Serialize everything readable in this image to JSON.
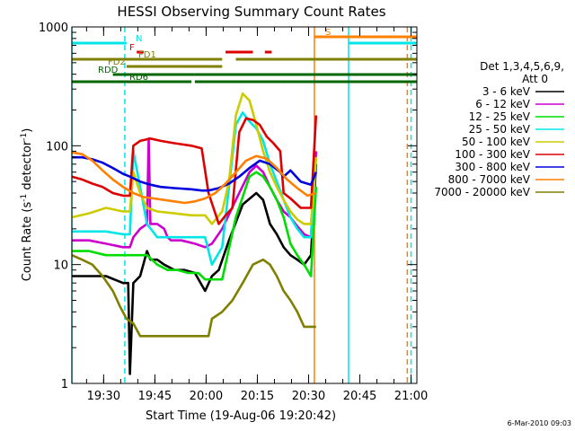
{
  "chart_data": {
    "type": "line",
    "title": "HESSI Observing Summary Count Rates",
    "xlabel": "Start Time (19-Aug-06 19:20:42)",
    "ylabel_main": "Count Rate (s",
    "ylabel_sup1": "-1",
    "ylabel_mid": " detector",
    "ylabel_sup2": "-1",
    "ylabel_end": ")",
    "yscale": "log",
    "ylim": [
      1,
      1000
    ],
    "xlim_minutes": [
      0,
      101
    ],
    "x_ticks": [
      {
        "label": "19:30",
        "min": 9.3
      },
      {
        "label": "19:45",
        "min": 24.3
      },
      {
        "label": "20:00",
        "min": 39.3
      },
      {
        "label": "20:15",
        "min": 54.3
      },
      {
        "label": "20:30",
        "min": 69.3
      },
      {
        "label": "20:45",
        "min": 84.3
      },
      {
        "label": "21:00",
        "min": 99.3
      }
    ],
    "y_ticks": [
      {
        "label": "1",
        "v": 1
      },
      {
        "label": "10",
        "v": 10
      },
      {
        "label": "100",
        "v": 100
      },
      {
        "label": "1000",
        "v": 1000
      }
    ],
    "legend_header": [
      "Det 1,3,4,5,6,9,",
      "Att 0"
    ],
    "series": [
      {
        "name": "3 - 6 keV",
        "color": "#000000",
        "x": [
          0,
          5,
          10,
          15,
          16.5,
          17,
          18,
          20,
          22,
          23,
          25,
          27,
          30,
          33,
          36,
          39,
          41,
          43,
          46,
          50,
          54,
          56,
          58,
          60,
          62,
          64,
          66,
          68,
          70,
          71.5
        ],
        "y": [
          8,
          8,
          8,
          7,
          7,
          1.2,
          7,
          8,
          13,
          11,
          11,
          10,
          9,
          9,
          8.5,
          6,
          8,
          9,
          16,
          32,
          40,
          35,
          22,
          18,
          14,
          12,
          11,
          10,
          12,
          70
        ]
      },
      {
        "name": "6 - 12 keV",
        "color": "#cc00cc",
        "x": [
          0,
          5,
          10,
          15,
          17,
          18,
          20,
          22,
          22.5,
          23,
          25,
          27,
          28,
          29,
          32,
          36,
          39,
          41,
          44,
          48,
          52,
          54,
          56,
          58,
          60,
          62,
          64,
          66,
          68,
          70,
          71.5
        ],
        "y": [
          16,
          16,
          15,
          14,
          14,
          17,
          20,
          22,
          115,
          22,
          22,
          20,
          17,
          16,
          16,
          15,
          14,
          15,
          20,
          35,
          60,
          68,
          60,
          45,
          35,
          28,
          25,
          21,
          18,
          17,
          90
        ]
      },
      {
        "name": "12 - 25 keV",
        "color": "#00dd00",
        "x": [
          0,
          5,
          10,
          15,
          17,
          18,
          20,
          22,
          25,
          28,
          31,
          34,
          37,
          39,
          41,
          44,
          48,
          52,
          54,
          56,
          58,
          60,
          62,
          64,
          66,
          68,
          70,
          71.5
        ],
        "y": [
          13,
          13,
          12,
          12,
          12,
          12,
          12,
          12,
          10,
          9,
          9,
          8.5,
          8.5,
          7.5,
          7.5,
          7.5,
          25,
          55,
          60,
          55,
          45,
          35,
          25,
          15,
          12,
          10,
          8,
          45
        ]
      },
      {
        "name": "25 - 50 keV",
        "color": "#00e5e5",
        "x": [
          0,
          5,
          10,
          15,
          17,
          18,
          20,
          22,
          25,
          30,
          35,
          39,
          41,
          44,
          46,
          48,
          50,
          52,
          54,
          56,
          58,
          60,
          62,
          64,
          66,
          68,
          70,
          71.5
        ],
        "y": [
          19,
          19,
          19,
          18,
          18,
          90,
          45,
          22,
          17,
          17,
          17,
          17,
          10,
          14,
          45,
          150,
          190,
          160,
          140,
          110,
          70,
          50,
          35,
          25,
          20,
          17,
          17,
          80
        ]
      },
      {
        "name": "50 - 100 keV",
        "color": "#cccc00",
        "x": [
          0,
          5,
          10,
          15,
          17,
          18,
          20,
          22,
          25,
          30,
          35,
          39,
          41,
          44,
          46,
          48,
          50,
          52,
          54,
          56,
          58,
          60,
          62,
          64,
          66,
          68,
          70,
          71.5
        ],
        "y": [
          25,
          27,
          30,
          28,
          28,
          60,
          40,
          30,
          28,
          27,
          26,
          26,
          22,
          28,
          50,
          180,
          275,
          240,
          150,
          90,
          60,
          45,
          35,
          28,
          24,
          22,
          22,
          80
        ]
      },
      {
        "name": "100 - 300 keV",
        "color": "#dd0000",
        "x": [
          0,
          3,
          6,
          9,
          12,
          15,
          17,
          18,
          20,
          23,
          26,
          30,
          35,
          38,
          40,
          43,
          45,
          47,
          49,
          51,
          53,
          55,
          57,
          59,
          61,
          62,
          64,
          67,
          70,
          71.5
        ],
        "y": [
          55,
          52,
          48,
          45,
          40,
          38,
          38,
          100,
          110,
          115,
          110,
          105,
          100,
          95,
          40,
          22,
          26,
          30,
          130,
          170,
          165,
          150,
          120,
          105,
          90,
          40,
          36,
          30,
          30,
          180
        ]
      },
      {
        "name": "300 - 800 keV",
        "color": "#0000dd",
        "x": [
          0,
          3,
          6,
          9,
          12,
          15,
          17,
          20,
          23,
          26,
          30,
          35,
          38,
          40,
          43,
          46,
          49,
          52,
          55,
          58,
          61,
          62,
          64,
          67,
          70,
          71.5
        ],
        "y": [
          80,
          80,
          77,
          72,
          65,
          58,
          55,
          50,
          47,
          45,
          44,
          43,
          42,
          42,
          44,
          48,
          55,
          65,
          75,
          70,
          60,
          55,
          62,
          50,
          47,
          60
        ]
      },
      {
        "name": "800 - 7000 keV",
        "color": "#ff7f00",
        "x": [
          0,
          3,
          6,
          9,
          12,
          15,
          18,
          21,
          24,
          27,
          30,
          33,
          36,
          39,
          42,
          45,
          48,
          51,
          54,
          57,
          60,
          63,
          66,
          69,
          71.5
        ],
        "y": [
          88,
          85,
          75,
          62,
          52,
          45,
          40,
          37,
          36,
          35,
          34,
          33,
          34,
          36,
          40,
          48,
          60,
          75,
          82,
          78,
          65,
          52,
          44,
          38,
          40
        ]
      },
      {
        "name": "7000 - 20000 keV",
        "color": "#808000",
        "x": [
          0,
          3,
          6,
          9,
          12,
          14,
          16,
          18,
          20,
          22,
          25,
          28,
          31,
          34,
          37,
          40,
          41,
          44,
          47,
          50,
          53,
          56,
          58,
          60,
          62,
          64,
          66,
          68,
          70,
          71.5
        ],
        "y": [
          12,
          11,
          10,
          8,
          6,
          4.5,
          3.5,
          3.2,
          2.5,
          2.5,
          2.5,
          2.5,
          2.5,
          2.5,
          2.5,
          2.5,
          3.5,
          4,
          5,
          7,
          10,
          11,
          10,
          8,
          6,
          5,
          4,
          3,
          3,
          3
        ]
      }
    ],
    "flags": [
      {
        "label": "N",
        "color": "#00e5e5",
        "segments": [
          [
            0,
            16
          ],
          [
            81,
            101
          ]
        ]
      },
      {
        "label": "S",
        "color": "#ff7f00",
        "segments": [
          [
            71,
            101
          ]
        ]
      },
      {
        "label": "F",
        "color": "#dd0000",
        "segments": [
          [
            19,
            21
          ],
          [
            45,
            53
          ],
          [
            56.5,
            58.5
          ]
        ]
      },
      {
        "label": "FD1",
        "color": "#808000",
        "segments": [
          [
            0,
            44
          ],
          [
            48,
            101
          ]
        ]
      },
      {
        "label": "FD2",
        "color": "#808000",
        "segments": [
          [
            16,
            44
          ]
        ]
      },
      {
        "label": "RDD",
        "color": "#006600",
        "segments": [
          [
            12,
            36
          ],
          [
            36,
            71
          ],
          [
            71,
            101
          ]
        ]
      },
      {
        "label": "RD6",
        "color": "#006600",
        "segments": [
          [
            0,
            13
          ],
          [
            13,
            35
          ],
          [
            36,
            63
          ],
          [
            63,
            101
          ]
        ]
      }
    ],
    "vlines": [
      {
        "min": 0,
        "color": "#00e5e5",
        "dash": false
      },
      {
        "min": 15.5,
        "color": "#00e5e5",
        "dash": true
      },
      {
        "min": 71,
        "color": "#ff7f00",
        "dash": false
      },
      {
        "min": 81,
        "color": "#00e5e5",
        "dash": false
      },
      {
        "min": 98.2,
        "color": "#ff7f00",
        "dash": true
      },
      {
        "min": 99.3,
        "color": "#00e5e5",
        "dash": true
      }
    ],
    "footer_date": "6-Mar-2010 09:03"
  }
}
